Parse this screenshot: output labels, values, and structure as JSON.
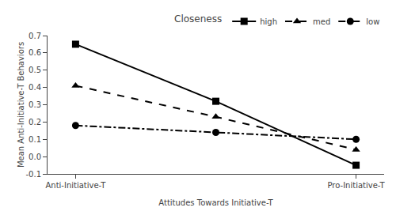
{
  "chart_data": {
    "type": "line",
    "categories": [
      "Anti-Initiative-T",
      null,
      "Pro-Initiative-T"
    ],
    "series": [
      {
        "name": "high",
        "color": "#000000",
        "marker": "square",
        "line_style": "solid",
        "values": [
          0.65,
          0.32,
          -0.05
        ]
      },
      {
        "name": "med",
        "color": "#000000",
        "marker": "triangle-up",
        "line_style": "dash",
        "values": [
          0.41,
          0.23,
          0.04
        ]
      },
      {
        "name": "low",
        "color": "#000000",
        "marker": "circle",
        "line_style": "dashdot",
        "values": [
          0.18,
          0.14,
          0.1
        ]
      }
    ],
    "xlabel": "Attitudes Towards Initiative-T",
    "ylabel": "Mean Anti-Initiative-T Behaviors",
    "ylim": [
      -0.1,
      0.7
    ],
    "yticks": [
      -0.1,
      {
        "value": 0,
        "label": "0.0"
      },
      0.1,
      0.2,
      0.3,
      0.4,
      0.5,
      0.6,
      0.7
    ],
    "legend": "upper right",
    "legend_title": "Closeness",
    "grid": false
  }
}
